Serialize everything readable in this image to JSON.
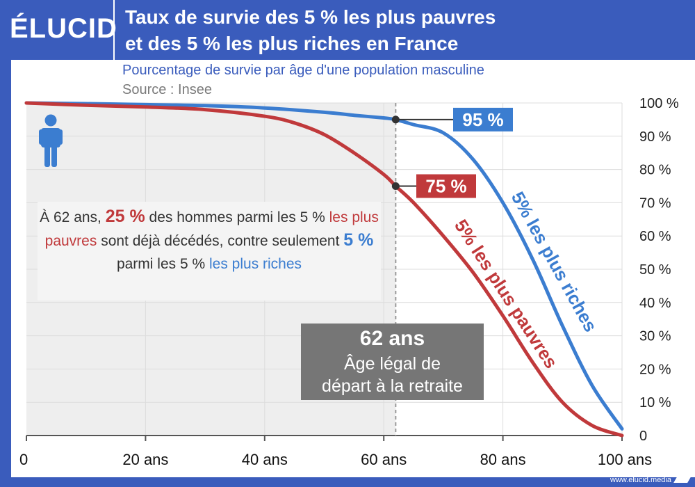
{
  "brand": {
    "logo_text": "ÉLUCID",
    "footer_url": "www.elucid.media"
  },
  "colors": {
    "header_bg": "#3a5cbc",
    "rich": "#3b7dd0",
    "poor": "#c0393b",
    "shade": "#eeeeee",
    "annotation_box": "#767676"
  },
  "icons": {
    "person": "person-icon"
  },
  "chart_data": {
    "type": "line",
    "title_line1": "Taux de survie des 5 % les plus pauvres",
    "title_line2": "et des 5 % les plus riches en France",
    "subtitle": "Pourcentage de survie par âge d'une population masculine",
    "source": "Source : Insee",
    "xlim": [
      0,
      100
    ],
    "ylim": [
      0,
      100
    ],
    "x_ticks": [
      {
        "value": 0,
        "label": "0"
      },
      {
        "value": 20,
        "label": "20 ans"
      },
      {
        "value": 40,
        "label": "40 ans"
      },
      {
        "value": 60,
        "label": "60 ans"
      },
      {
        "value": 80,
        "label": "80 ans"
      },
      {
        "value": 100,
        "label": "100 ans"
      }
    ],
    "y_ticks": [
      {
        "value": 0,
        "label": "0"
      },
      {
        "value": 10,
        "label": "10 %"
      },
      {
        "value": 20,
        "label": "20 %"
      },
      {
        "value": 30,
        "label": "30 %"
      },
      {
        "value": 40,
        "label": "40 %"
      },
      {
        "value": 50,
        "label": "50 %"
      },
      {
        "value": 60,
        "label": "60 %"
      },
      {
        "value": 70,
        "label": "70 %"
      },
      {
        "value": 80,
        "label": "80 %"
      },
      {
        "value": 90,
        "label": "90 %"
      },
      {
        "value": 100,
        "label": "100 %"
      }
    ],
    "shaded_until_age": 62,
    "series": [
      {
        "name": "5% les plus riches",
        "x": [
          0,
          10,
          20,
          30,
          40,
          50,
          55,
          60,
          62,
          65,
          70,
          75,
          80,
          85,
          90,
          95,
          100
        ],
        "y": [
          100,
          99.8,
          99.5,
          99.2,
          98.5,
          97.2,
          96.3,
          95.5,
          95,
          93.5,
          91,
          83,
          70,
          53,
          33,
          15,
          2
        ]
      },
      {
        "name": "5% les plus pauvres",
        "x": [
          0,
          10,
          20,
          30,
          40,
          45,
          50,
          55,
          60,
          62,
          65,
          70,
          75,
          80,
          85,
          90,
          95,
          100
        ],
        "y": [
          100,
          99.3,
          98.8,
          98,
          96,
          94,
          90.5,
          85,
          78.5,
          75,
          70,
          60,
          49,
          36,
          22,
          10,
          3,
          0
        ]
      }
    ],
    "markers": [
      {
        "x": 62,
        "y": 95,
        "label": "95 %"
      },
      {
        "x": 62,
        "y": 75,
        "label": "75 %"
      }
    ],
    "annotation": {
      "age": "62 ans",
      "line1": "Âge légal de",
      "line2": "départ à la retraite"
    },
    "note": {
      "p1": "À 62 ans, ",
      "pct_poor": "25 %",
      "p2": " des hommes parmi les 5 % ",
      "poor_label": "les plus pauvres",
      "p3": " sont déjà décédés, contre seulement ",
      "pct_rich": "5 %",
      "p4": " parmi les 5 % ",
      "rich_label": "les plus riches"
    }
  }
}
